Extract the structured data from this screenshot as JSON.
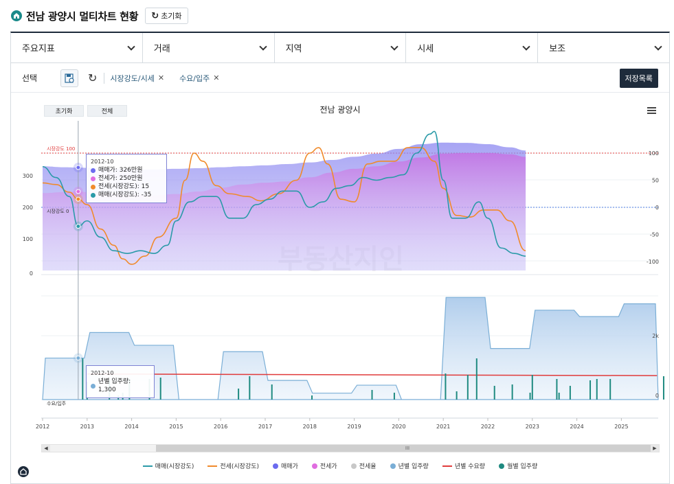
{
  "header": {
    "title": "전남 광양시 멀티차트 현황",
    "reset_label": "초기화"
  },
  "filters": [
    {
      "label": "주요지표"
    },
    {
      "label": "거래"
    },
    {
      "label": "지역"
    },
    {
      "label": "시세"
    },
    {
      "label": "보조"
    }
  ],
  "selection": {
    "label": "선택",
    "chips": [
      {
        "label": "시장강도/시세"
      },
      {
        "label": "수요/입주"
      }
    ],
    "save_label": "저장목록"
  },
  "chart": {
    "title": "전남 광양시",
    "reset_label": "초기화",
    "all_label": "전체",
    "watermark": "부동산지인",
    "upper_left_ticks": [
      "300",
      "200",
      "100",
      "0"
    ],
    "upper_right_ticks": [
      "100",
      "50",
      "0",
      "-50",
      "-100"
    ],
    "ref_100_label": "시장강도 100",
    "ref_0_label": "시장강도 0",
    "lower_right_ticks": [
      "2k",
      "0"
    ],
    "lower_label": "수요/입주",
    "x_ticks": [
      "2012",
      "2013",
      "2014",
      "2015",
      "2016",
      "2017",
      "2018",
      "2019",
      "2020",
      "2021",
      "2022",
      "2023",
      "2024",
      "2025"
    ],
    "tooltip_upper": {
      "date": "2012-10",
      "rows": [
        {
          "label": "매매가: 326만원",
          "color": "#6b6bef"
        },
        {
          "label": "전세가: 250만원",
          "color": "#e06de0"
        },
        {
          "label": "전세(시장강도): 15",
          "color": "#f08a2a"
        },
        {
          "label": "매매(시장강도): -35",
          "color": "#2a9aa8"
        }
      ]
    },
    "tooltip_lower": {
      "date": "2012-10",
      "rows": [
        {
          "label": "년별 입주량: 1,300",
          "color": "#7aaed6"
        }
      ]
    },
    "scroll_label": "III"
  },
  "chart_data": {
    "type": "line",
    "title": "전남 광양시",
    "x_range": [
      "2012-01",
      "2025-12"
    ],
    "series": [
      {
        "name": "매매가",
        "unit": "만원",
        "axis": "left",
        "type": "area",
        "x": [
          2012.0,
          2012.5,
          2012.8,
          2013.0,
          2013.5,
          2014.0,
          2014.5,
          2015.0,
          2015.5,
          2016.0,
          2016.5,
          2017.0,
          2017.5,
          2018.0,
          2018.5,
          2019.0,
          2019.5,
          2020.0,
          2020.5,
          2021.0,
          2021.5,
          2022.0,
          2022.5,
          2022.85
        ],
        "values": [
          330,
          327,
          326,
          325,
          323,
          321,
          320,
          322,
          324,
          327,
          330,
          333,
          337,
          342,
          350,
          360,
          370,
          385,
          400,
          405,
          404,
          400,
          390,
          380
        ]
      },
      {
        "name": "전세가",
        "unit": "만원",
        "axis": "left",
        "type": "area",
        "x": [
          2012.0,
          2012.5,
          2012.8,
          2013.0,
          2013.5,
          2014.0,
          2014.5,
          2015.0,
          2015.5,
          2016.0,
          2016.5,
          2017.0,
          2017.5,
          2018.0,
          2018.5,
          2019.0,
          2019.5,
          2020.0,
          2020.5,
          2021.0,
          2021.5,
          2022.0,
          2022.5,
          2022.85
        ],
        "values": [
          245,
          248,
          250,
          248,
          244,
          240,
          238,
          242,
          250,
          262,
          272,
          278,
          282,
          295,
          310,
          322,
          330,
          345,
          358,
          370,
          372,
          372,
          368,
          360
        ]
      },
      {
        "name": "전세(시장강도)",
        "axis": "right",
        "type": "line",
        "x": [
          2012.0,
          2012.3,
          2012.6,
          2012.8,
          2013.0,
          2013.3,
          2013.6,
          2013.8,
          2014.0,
          2014.3,
          2014.6,
          2015.0,
          2015.2,
          2015.4,
          2015.6,
          2015.9,
          2016.2,
          2016.6,
          2016.9,
          2017.3,
          2017.7,
          2018.0,
          2018.2,
          2018.4,
          2018.7,
          2019.0,
          2019.3,
          2019.6,
          2019.9,
          2020.2,
          2020.5,
          2020.8,
          2021.0,
          2021.3,
          2021.6,
          2021.9,
          2022.2,
          2022.5,
          2022.85
        ],
        "values": [
          45,
          42,
          28,
          15,
          5,
          -40,
          -70,
          -95,
          -105,
          -90,
          -55,
          -20,
          50,
          100,
          85,
          40,
          25,
          20,
          12,
          25,
          50,
          100,
          110,
          80,
          15,
          10,
          80,
          85,
          85,
          110,
          110,
          85,
          35,
          -15,
          -18,
          -5,
          -5,
          -25,
          -80
        ]
      },
      {
        "name": "매매(시장강도)",
        "axis": "right",
        "type": "line",
        "x": [
          2012.0,
          2012.3,
          2012.6,
          2012.8,
          2013.0,
          2013.3,
          2013.6,
          2013.9,
          2014.2,
          2014.5,
          2014.8,
          2015.0,
          2015.3,
          2015.6,
          2015.9,
          2016.2,
          2016.5,
          2016.8,
          2017.1,
          2017.4,
          2017.7,
          2018.0,
          2018.3,
          2018.6,
          2018.9,
          2019.2,
          2019.5,
          2019.8,
          2020.1,
          2020.4,
          2020.7,
          2020.8,
          2021.0,
          2021.2,
          2021.5,
          2021.8,
          2022.0,
          2022.3,
          2022.6,
          2022.85
        ],
        "values": [
          75,
          55,
          20,
          -35,
          -25,
          -55,
          -80,
          -85,
          -80,
          -85,
          -70,
          -25,
          10,
          20,
          20,
          -20,
          -20,
          5,
          15,
          30,
          30,
          0,
          10,
          35,
          40,
          55,
          50,
          55,
          60,
          100,
          135,
          140,
          50,
          -20,
          -20,
          10,
          -20,
          -75,
          -85,
          -90
        ]
      },
      {
        "name": "년별 입주량",
        "axis": "lower",
        "type": "area",
        "x": [
          2012.0,
          2013.0,
          2014.0,
          2015.0,
          2016.0,
          2017.0,
          2018.0,
          2019.0,
          2020.0,
          2021.0,
          2022.0,
          2023.0,
          2024.0,
          2025.0
        ],
        "values": [
          1300,
          2100,
          1700,
          0,
          1500,
          600,
          200,
          450,
          0,
          3200,
          1600,
          2800,
          2600,
          3000
        ]
      },
      {
        "name": "년별 수요량",
        "axis": "lower",
        "type": "line",
        "x": [
          2013.0,
          2025.8
        ],
        "values": [
          800,
          750
        ]
      }
    ]
  },
  "legend": [
    {
      "label": "매매(시장강도)",
      "color": "#2a9aa8",
      "kind": "line"
    },
    {
      "label": "전세(시장강도)",
      "color": "#f08a2a",
      "kind": "line"
    },
    {
      "label": "매매가",
      "color": "#6b6bef",
      "kind": "dot"
    },
    {
      "label": "전세가",
      "color": "#e06de0",
      "kind": "dot"
    },
    {
      "label": "전세율",
      "color": "#c8c8c8",
      "kind": "dot"
    },
    {
      "label": "년별 입주량",
      "color": "#7aaed6",
      "kind": "dot"
    },
    {
      "label": "년별 수요량",
      "color": "#e03a3a",
      "kind": "line"
    },
    {
      "label": "월별 입주량",
      "color": "#1e8a80",
      "kind": "dot"
    }
  ]
}
